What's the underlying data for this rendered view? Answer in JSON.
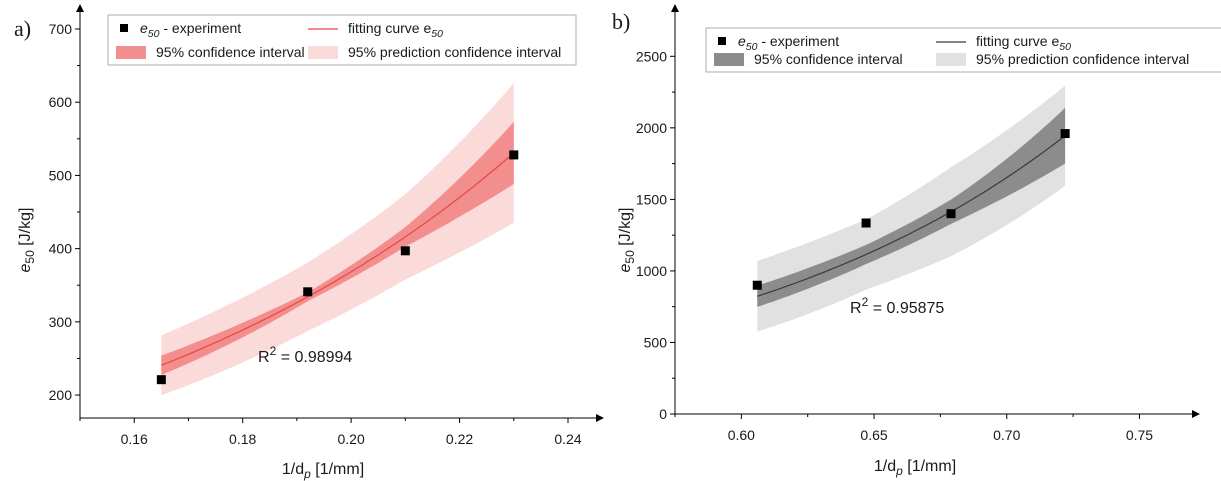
{
  "chart_data": [
    {
      "panel_label": "a)",
      "type": "scatter",
      "xlim": [
        0.15,
        0.24
      ],
      "ylim": [
        170,
        700
      ],
      "x_ticks": [
        0.16,
        0.18,
        0.2,
        0.22,
        0.24
      ],
      "x_tick_labels": [
        "0.16",
        "0.18",
        "0.20",
        "0.22",
        "0.24"
      ],
      "y_ticks": [
        200,
        300,
        400,
        500,
        600,
        700
      ],
      "y_tick_labels": [
        "200",
        "300",
        "400",
        "500",
        "600",
        "700"
      ],
      "xlabel": {
        "main": "1/d",
        "sub": "p",
        "tail": " [1/mm]"
      },
      "ylabel": {
        "main": "e",
        "sub": "50",
        "tail": " [J/kg]"
      },
      "points": {
        "x": [
          0.165,
          0.192,
          0.21,
          0.23
        ],
        "y": [
          221,
          341,
          397,
          528
        ]
      },
      "fit": {
        "model": "exponential",
        "x_range": [
          0.165,
          0.23
        ],
        "a": 32.3,
        "b": 12.17
      },
      "confidence_band_halfwidth": [
        0.055,
        0.018,
        0.032,
        0.08
      ],
      "prediction_band_halfwidth": [
        0.17,
        0.14,
        0.14,
        0.18
      ],
      "colors": {
        "points": "#000000",
        "fit_line": "#e8473f",
        "confidence_band": "#f28e8e",
        "prediction_band": "#fbdada"
      },
      "legend": {
        "experiment": {
          "main": "e",
          "sub": "50",
          "tail": " - experiment"
        },
        "fit": {
          "main": "fitting curve e",
          "sub": "50"
        },
        "confidence": "95% confidence interval",
        "prediction": "95% prediction confidence interval"
      },
      "annotation": {
        "main": "R",
        "sup": "2",
        "tail": " = 0.98994"
      }
    },
    {
      "panel_label": "b)",
      "type": "scatter",
      "xlim": [
        0.575,
        0.76
      ],
      "ylim": [
        0,
        2600
      ],
      "x_ticks": [
        0.6,
        0.65,
        0.7,
        0.75
      ],
      "x_tick_labels": [
        "0.60",
        "0.65",
        "0.70",
        "0.75"
      ],
      "y_ticks": [
        0,
        500,
        1000,
        1500,
        2000,
        2500
      ],
      "y_tick_labels": [
        "0",
        "500",
        "1000",
        "1500",
        "2000",
        "2500"
      ],
      "xlabel": {
        "main": "1/d",
        "sub": "p",
        "tail": " [1/mm]"
      },
      "ylabel": {
        "main": "e",
        "sub": "50",
        "tail": " [J/kg]"
      },
      "points": {
        "x": [
          0.606,
          0.647,
          0.679,
          0.722
        ],
        "y": [
          900,
          1335,
          1400,
          1960
        ]
      },
      "fit": {
        "model": "exponential",
        "x_range": [
          0.606,
          0.722
        ],
        "a": 9.17,
        "b": 7.42
      },
      "confidence_band_halfwidth": [
        0.09,
        0.06,
        0.06,
        0.1
      ],
      "prediction_band_halfwidth": [
        0.3,
        0.22,
        0.22,
        0.18
      ],
      "colors": {
        "points": "#000000",
        "fit_line": "#3a3a3a",
        "confidence_band": "#8c8c8c",
        "prediction_band": "#e1e1e1"
      },
      "legend": {
        "experiment": {
          "main": "e",
          "sub": "50",
          "tail": " - experiment"
        },
        "fit": {
          "main": "fitting curve e",
          "sub": "50"
        },
        "confidence": "95% confidence interval",
        "prediction": "95% prediction confidence interval"
      },
      "annotation": {
        "main": "R",
        "sup": "2",
        "tail": " = 0.95875"
      }
    }
  ]
}
